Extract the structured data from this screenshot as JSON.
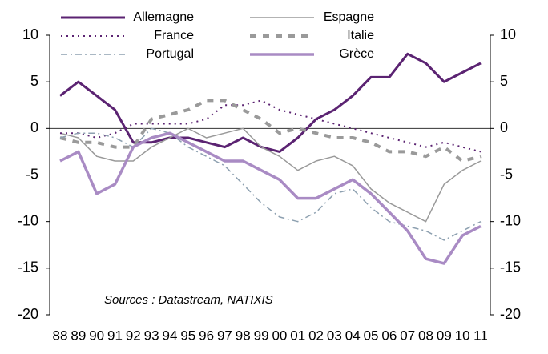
{
  "chart_data": {
    "type": "line",
    "annotation": "Sources : Datastream, NATIXIS",
    "categories": [
      "88",
      "89",
      "90",
      "91",
      "92",
      "93",
      "94",
      "95",
      "96",
      "97",
      "98",
      "99",
      "00",
      "01",
      "02",
      "03",
      "04",
      "05",
      "06",
      "07",
      "08",
      "09",
      "10",
      "11"
    ],
    "series": [
      {
        "name": "Allemagne",
        "color": "#5b2372",
        "width": 3,
        "dash": "none",
        "values": [
          3.5,
          5,
          3.5,
          2,
          -1.5,
          -1.5,
          -1,
          -1,
          -1.5,
          -2,
          -1,
          -2,
          -2.5,
          -1,
          1,
          2,
          3.5,
          5.5,
          5.5,
          8,
          7,
          5,
          6,
          7
        ]
      },
      {
        "name": "Espagne",
        "color": "#9a9a9a",
        "width": 1.5,
        "dash": "none",
        "values": [
          -0.5,
          -1,
          -3,
          -3.5,
          -3.5,
          -2,
          -1,
          0,
          -1,
          -0.5,
          0,
          -2,
          -3,
          -4.5,
          -3.5,
          -3,
          -4,
          -6.5,
          -8,
          -9,
          -10,
          -6,
          -4.5,
          -3.5
        ]
      },
      {
        "name": "France",
        "color": "#5b2372",
        "width": 2,
        "dash": "2,5",
        "values": [
          -0.5,
          -0.5,
          -1,
          -0.5,
          0.5,
          0.5,
          0.5,
          0.5,
          1,
          2.5,
          2.5,
          3,
          2,
          1.5,
          1,
          0.5,
          0,
          -0.5,
          -1,
          -1.5,
          -2,
          -1.5,
          -2,
          -2.5
        ]
      },
      {
        "name": "Italie",
        "color": "#9a9a9a",
        "width": 4,
        "dash": "8,8",
        "values": [
          -1,
          -1.5,
          -1.5,
          -2,
          -2,
          1,
          1.5,
          2,
          3,
          3,
          2,
          1,
          -0.5,
          0,
          -0.5,
          -1,
          -1,
          -1.5,
          -2.5,
          -2.5,
          -3,
          -2,
          -3.5,
          -3
        ]
      },
      {
        "name": "Portugal",
        "color": "#8da0b0",
        "width": 1.5,
        "dash": "8,4,2,4",
        "values": [
          -1,
          -0.5,
          -0.5,
          -1,
          -2,
          0,
          -0.5,
          -2,
          -3,
          -4,
          -6,
          -8,
          -9.5,
          -10,
          -9,
          -7,
          -6.5,
          -8.5,
          -10,
          -10.5,
          -11,
          -12,
          -11,
          -10
        ]
      },
      {
        "name": "Grèce",
        "color": "#a98bc4",
        "width": 3.5,
        "dash": "none",
        "values": [
          -3.5,
          -2.5,
          -7,
          -6,
          -2,
          -1,
          -0.5,
          -1.5,
          -2.5,
          -3.5,
          -3.5,
          -4.5,
          -5.5,
          -7.5,
          -7.5,
          -6.5,
          -5.5,
          -7,
          -9,
          -11,
          -14,
          -14.5,
          -11.5,
          -10.5
        ]
      }
    ],
    "ylim": [
      -20,
      10
    ],
    "yticks": [
      -20,
      -15,
      -10,
      -5,
      0,
      5,
      10
    ],
    "y2lim": [
      -20,
      10
    ],
    "y2ticks": [
      -20,
      -15,
      -10,
      -5,
      0,
      5,
      10
    ]
  }
}
